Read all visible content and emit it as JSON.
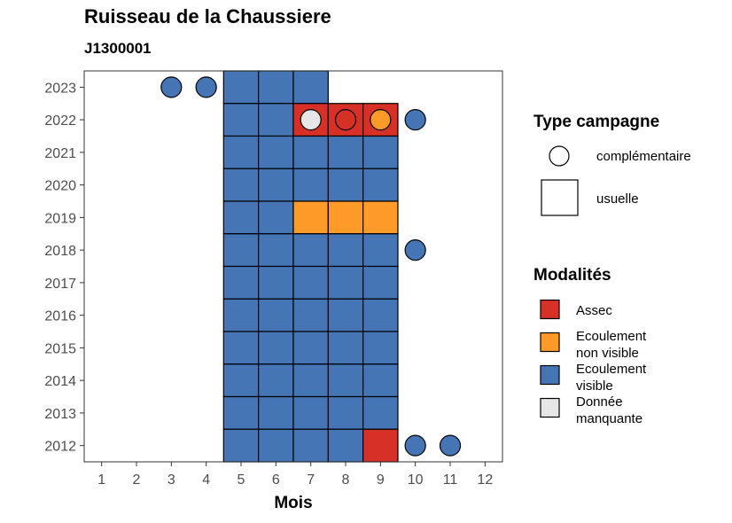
{
  "title": "Ruisseau de la Chaussiere",
  "subtitle": "J1300001",
  "colors": {
    "Assec": "#d73027",
    "Ecoulement non visible": "#fd9a28",
    "Ecoulement visible": "#4575b4",
    "Donnée manquante": "#e6e6e6"
  },
  "legend": {
    "type_title": "Type campagne",
    "type_items": [
      {
        "shape": "circle",
        "label": "complémentaire"
      },
      {
        "shape": "square",
        "label": "usuelle"
      }
    ],
    "mod_title": "Modalités",
    "mod_items": [
      {
        "key": "Assec",
        "lines": [
          "Assec"
        ]
      },
      {
        "key": "Ecoulement non visible",
        "lines": [
          "Ecoulement",
          "non visible"
        ]
      },
      {
        "key": "Ecoulement visible",
        "lines": [
          "Ecoulement",
          "visible"
        ]
      },
      {
        "key": "Donnée manquante",
        "lines": [
          "Donnée",
          "manquante"
        ]
      }
    ]
  },
  "chart_data": {
    "type": "heatmap",
    "xlabel": "Mois",
    "ylabel": "",
    "x_ticks": [
      1,
      2,
      3,
      4,
      5,
      6,
      7,
      8,
      9,
      10,
      11,
      12
    ],
    "y_ticks": [
      2012,
      2013,
      2014,
      2015,
      2016,
      2017,
      2018,
      2019,
      2020,
      2021,
      2022,
      2023
    ],
    "xlim": [
      0.5,
      12.5
    ],
    "ylim": [
      2011.5,
      2023.5
    ],
    "grid": false,
    "legend_position": "right",
    "usuelle": [
      {
        "year": 2023,
        "months": [
          5,
          6,
          7
        ],
        "modalite": [
          "Ecoulement visible",
          "Ecoulement visible",
          "Ecoulement visible"
        ]
      },
      {
        "year": 2022,
        "months": [
          5,
          6,
          7,
          8,
          9
        ],
        "modalite": [
          "Ecoulement visible",
          "Ecoulement visible",
          "Assec",
          "Assec",
          "Assec"
        ]
      },
      {
        "year": 2021,
        "months": [
          5,
          6,
          7,
          8,
          9
        ],
        "modalite": [
          "Ecoulement visible",
          "Ecoulement visible",
          "Ecoulement visible",
          "Ecoulement visible",
          "Ecoulement visible"
        ]
      },
      {
        "year": 2020,
        "months": [
          5,
          6,
          7,
          8,
          9
        ],
        "modalite": [
          "Ecoulement visible",
          "Ecoulement visible",
          "Ecoulement visible",
          "Ecoulement visible",
          "Ecoulement visible"
        ]
      },
      {
        "year": 2019,
        "months": [
          5,
          6,
          7,
          8,
          9
        ],
        "modalite": [
          "Ecoulement visible",
          "Ecoulement visible",
          "Ecoulement non visible",
          "Ecoulement non visible",
          "Ecoulement non visible"
        ]
      },
      {
        "year": 2018,
        "months": [
          5,
          6,
          7,
          8,
          9
        ],
        "modalite": [
          "Ecoulement visible",
          "Ecoulement visible",
          "Ecoulement visible",
          "Ecoulement visible",
          "Ecoulement visible"
        ]
      },
      {
        "year": 2017,
        "months": [
          5,
          6,
          7,
          8,
          9
        ],
        "modalite": [
          "Ecoulement visible",
          "Ecoulement visible",
          "Ecoulement visible",
          "Ecoulement visible",
          "Ecoulement visible"
        ]
      },
      {
        "year": 2016,
        "months": [
          5,
          6,
          7,
          8,
          9
        ],
        "modalite": [
          "Ecoulement visible",
          "Ecoulement visible",
          "Ecoulement visible",
          "Ecoulement visible",
          "Ecoulement visible"
        ]
      },
      {
        "year": 2015,
        "months": [
          5,
          6,
          7,
          8,
          9
        ],
        "modalite": [
          "Ecoulement visible",
          "Ecoulement visible",
          "Ecoulement visible",
          "Ecoulement visible",
          "Ecoulement visible"
        ]
      },
      {
        "year": 2014,
        "months": [
          5,
          6,
          7,
          8,
          9
        ],
        "modalite": [
          "Ecoulement visible",
          "Ecoulement visible",
          "Ecoulement visible",
          "Ecoulement visible",
          "Ecoulement visible"
        ]
      },
      {
        "year": 2013,
        "months": [
          5,
          6,
          7,
          8,
          9
        ],
        "modalite": [
          "Ecoulement visible",
          "Ecoulement visible",
          "Ecoulement visible",
          "Ecoulement visible",
          "Ecoulement visible"
        ]
      },
      {
        "year": 2012,
        "months": [
          5,
          6,
          7,
          8,
          9
        ],
        "modalite": [
          "Ecoulement visible",
          "Ecoulement visible",
          "Ecoulement visible",
          "Ecoulement visible",
          "Assec"
        ]
      }
    ],
    "complementaire": [
      {
        "year": 2023,
        "month": 3,
        "modalite": "Ecoulement visible"
      },
      {
        "year": 2023,
        "month": 4,
        "modalite": "Ecoulement visible"
      },
      {
        "year": 2022,
        "month": 7,
        "modalite": "Donnée manquante"
      },
      {
        "year": 2022,
        "month": 8,
        "modalite": "Assec"
      },
      {
        "year": 2022,
        "month": 9,
        "modalite": "Ecoulement non visible"
      },
      {
        "year": 2022,
        "month": 10,
        "modalite": "Ecoulement visible"
      },
      {
        "year": 2018,
        "month": 10,
        "modalite": "Ecoulement visible"
      },
      {
        "year": 2012,
        "month": 10,
        "modalite": "Ecoulement visible"
      },
      {
        "year": 2012,
        "month": 11,
        "modalite": "Ecoulement visible"
      }
    ]
  }
}
